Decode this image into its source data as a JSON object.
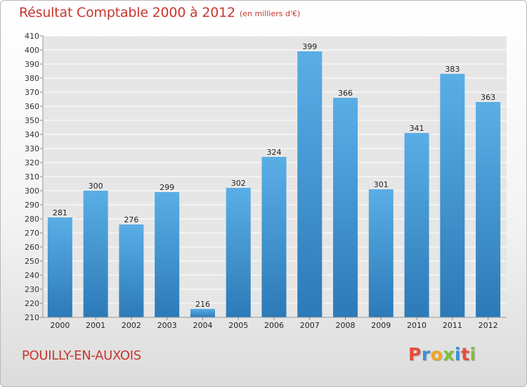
{
  "header": {
    "title": "Résultat Comptable 2000 à 2012",
    "subtitle": "(en milliers d'€)"
  },
  "commune_name": "POUILLY-EN-AUXOIS",
  "logo": {
    "text": "Proxiti",
    "letters": [
      {
        "ch": "P",
        "color": "#e94c3c"
      },
      {
        "ch": "r",
        "color": "#3a8fd9"
      },
      {
        "ch": "o",
        "color": "#f2a52b"
      },
      {
        "ch": "x",
        "color": "#7cbf3a"
      },
      {
        "ch": "i",
        "color": "#3a8fd9"
      },
      {
        "ch": "t",
        "color": "#e94c3c"
      },
      {
        "ch": "i",
        "color": "#7cbf3a"
      }
    ]
  },
  "colors": {
    "accent": "#c8372e",
    "bar_top": "#5aaee6",
    "bar_bottom": "#2c7ab8",
    "plot_background": "#e6e6e6",
    "gridline": "#ffffff"
  },
  "chart_data": {
    "type": "bar",
    "title": "Résultat Comptable 2000 à 2012",
    "subtitle": "(en milliers d'€)",
    "categories": [
      "2000",
      "2001",
      "2002",
      "2003",
      "2004",
      "2005",
      "2006",
      "2007",
      "2008",
      "2009",
      "2010",
      "2011",
      "2012"
    ],
    "values": [
      281,
      300,
      276,
      299,
      216,
      302,
      324,
      399,
      366,
      301,
      341,
      383,
      363
    ],
    "ylim": [
      210,
      410
    ],
    "ytick_step": 10,
    "grid": true,
    "legend": "none",
    "xlabel": "",
    "ylabel": ""
  }
}
